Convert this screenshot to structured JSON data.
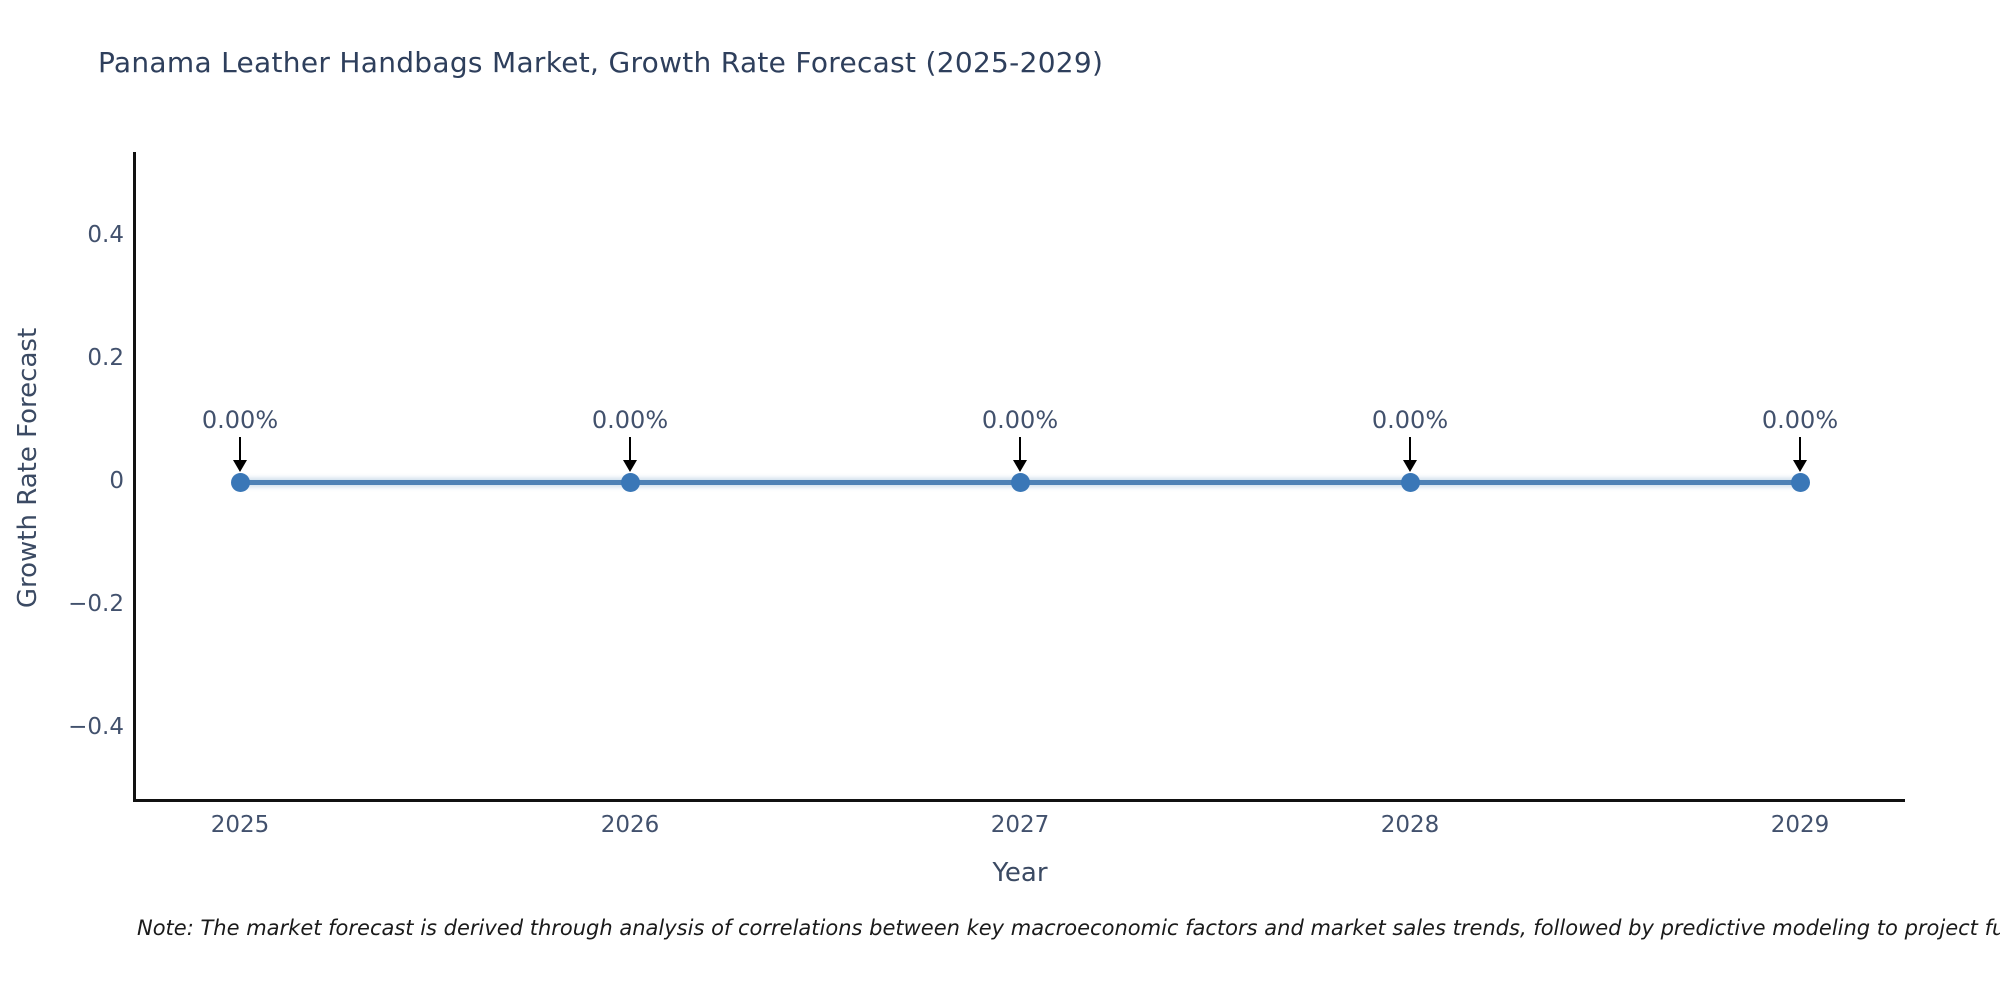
{
  "title": {
    "text": "Panama Leather Handbags Market, Growth Rate Forecast (2025-2029)"
  },
  "note": {
    "text": "Note: The market forecast is derived through analysis of correlations between key macroeconomic factors and market sales trends, followed by predictive modeling to project future sal"
  },
  "chart_data": {
    "type": "line",
    "title": "Panama Leather Handbags Market, Growth Rate Forecast (2025-2029)",
    "xlabel": "Year",
    "ylabel": "Growth Rate Forecast",
    "categories": [
      "2025",
      "2026",
      "2027",
      "2028",
      "2029"
    ],
    "series": [
      {
        "name": "Growth Rate Forecast",
        "values": [
          0,
          0,
          0,
          0,
          0
        ]
      }
    ],
    "point_labels": [
      "0.00%",
      "0.00%",
      "0.00%",
      "0.00%",
      "0.00%"
    ],
    "yticks": [
      0.4,
      0.2,
      0,
      -0.2,
      -0.4
    ],
    "ytick_labels": [
      "0.4",
      "0.2",
      "0",
      "−0.2",
      "−0.4"
    ],
    "ylim": [
      -0.52,
      0.53
    ],
    "grid": false,
    "legend_position": "none",
    "annotation_arrows": "down-to-point",
    "colors": {
      "line": "#4e81b5",
      "marker": "#3a77b7",
      "axis": "#111111",
      "title_text": "#2e3f5c",
      "tick_text": "#42516d",
      "note_text": "#1a1a1a",
      "arrow": "#000000"
    }
  }
}
